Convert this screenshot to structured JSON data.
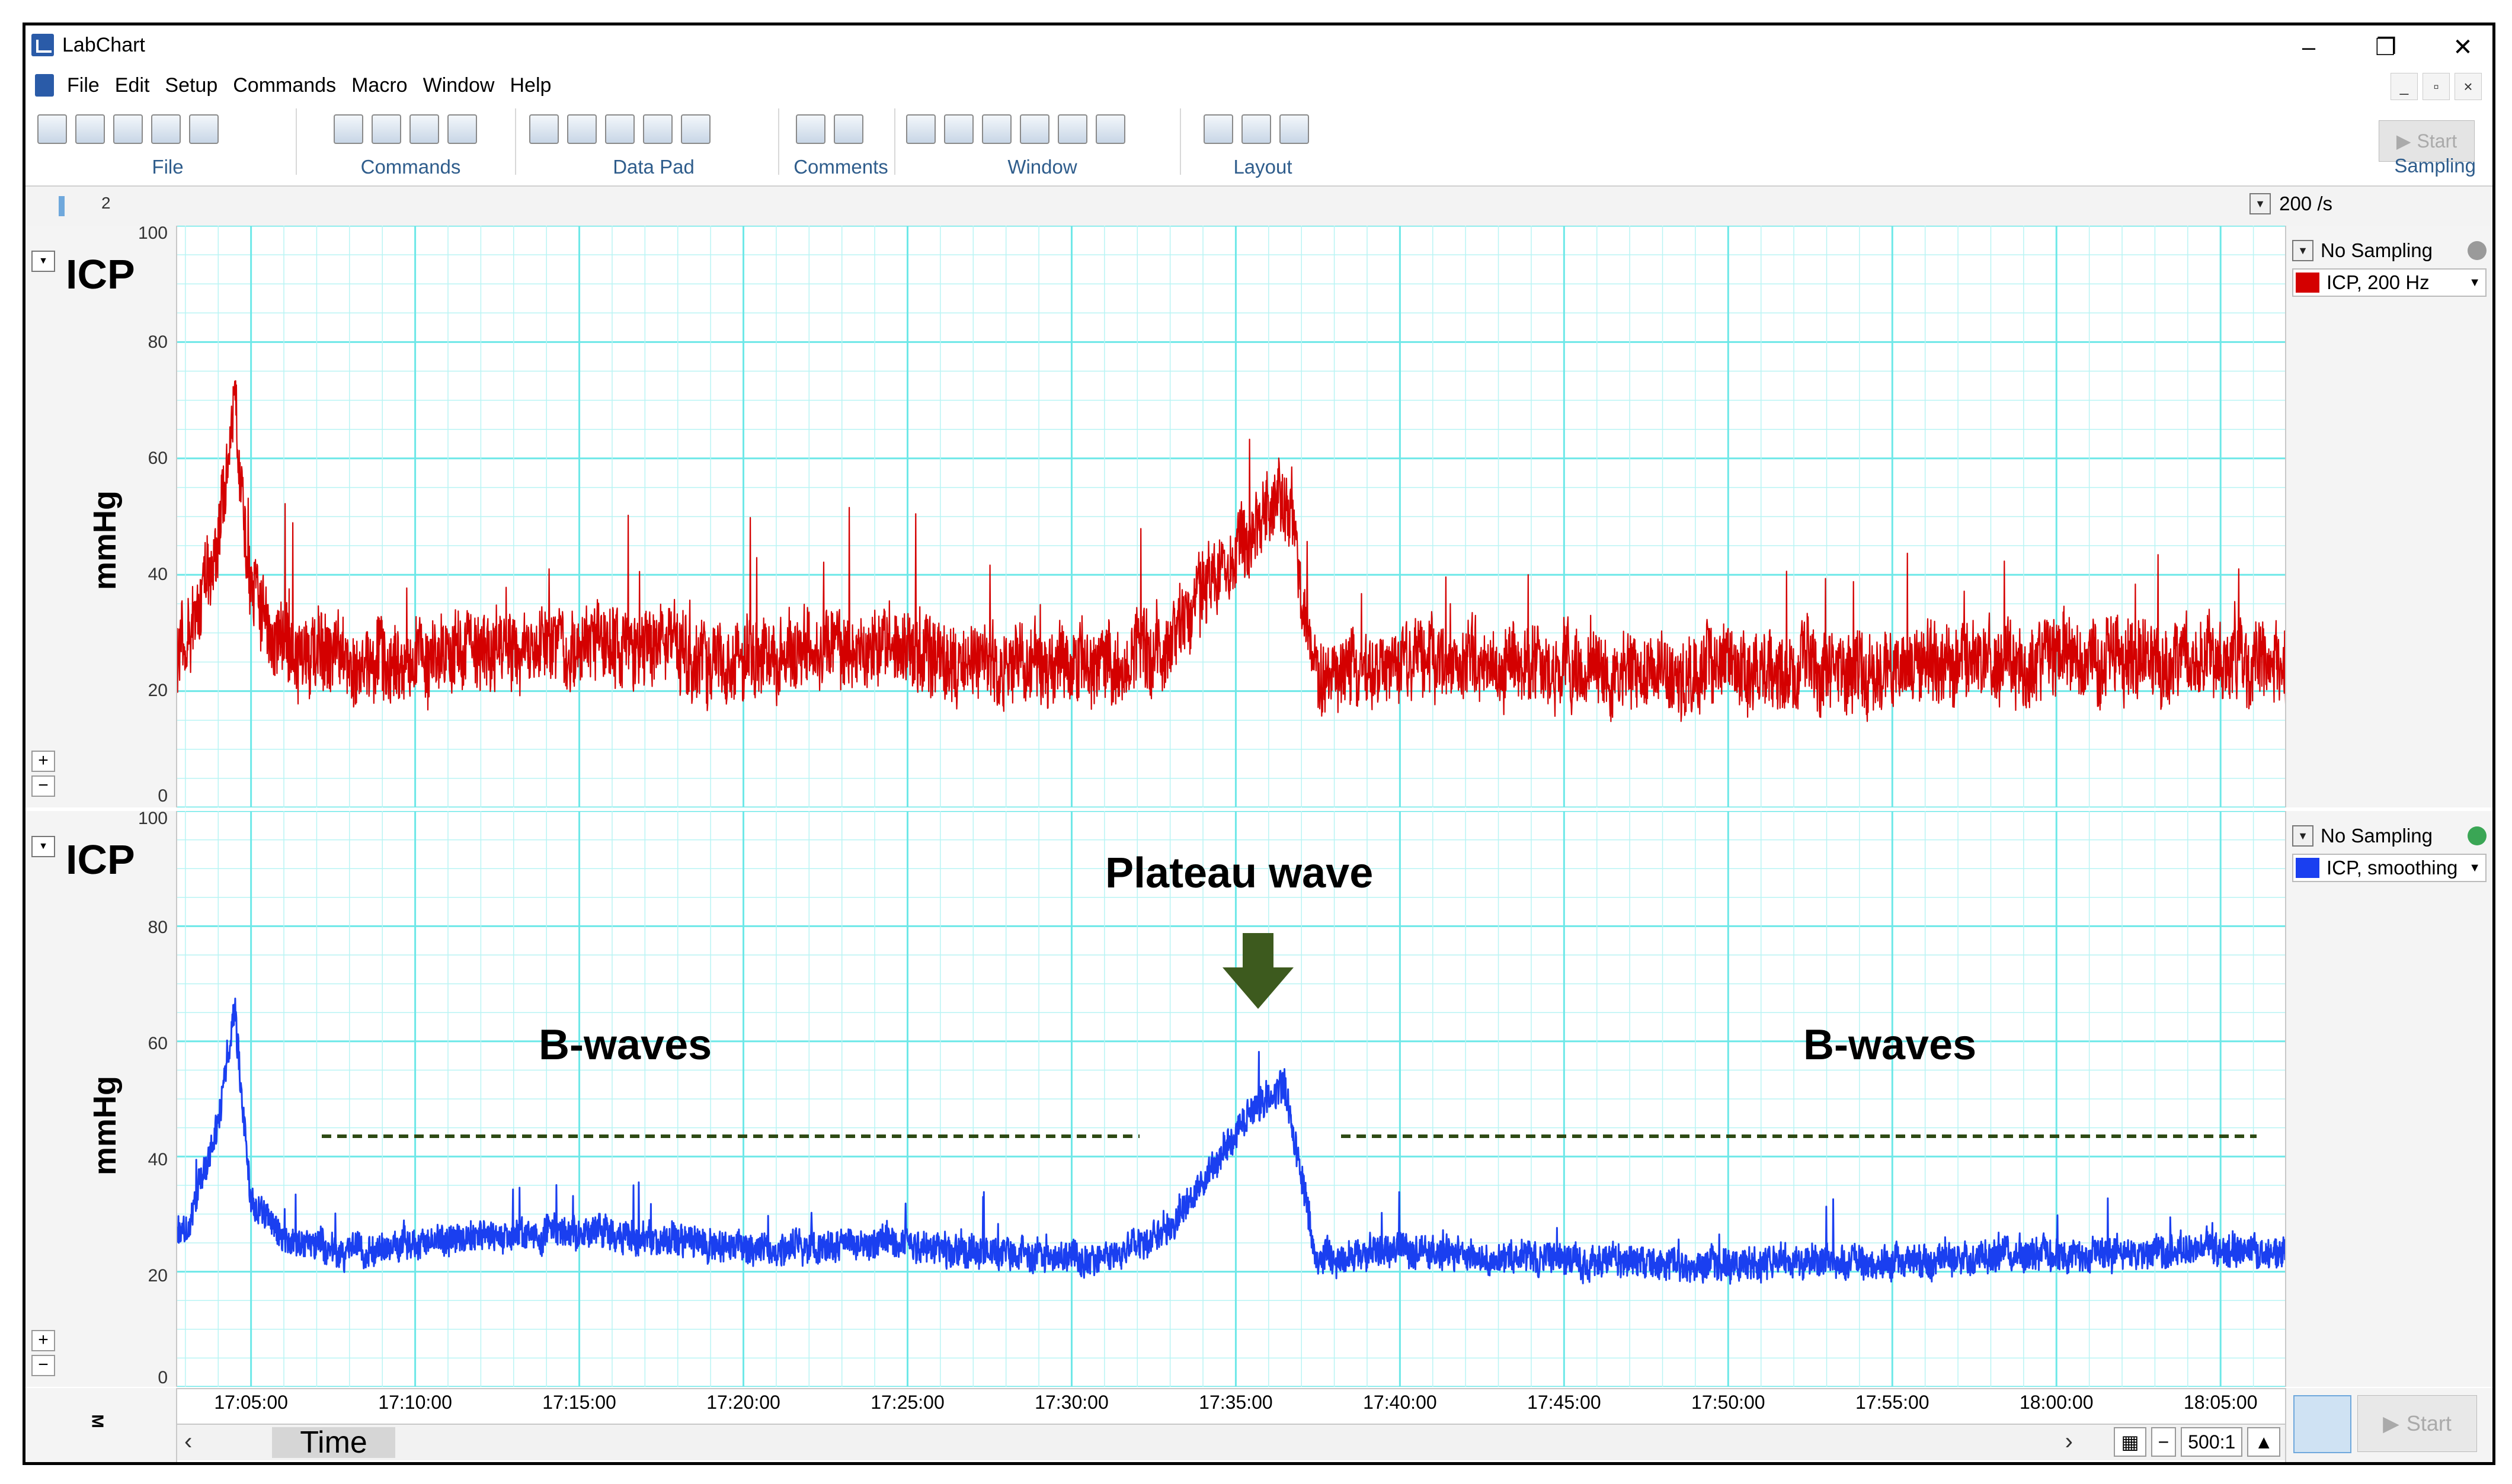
{
  "window": {
    "title": "LabChart",
    "minimize_glyph": "–",
    "maximize_glyph": "❐",
    "close_glyph": "✕"
  },
  "menu": [
    "File",
    "Edit",
    "Setup",
    "Commands",
    "Macro",
    "Window",
    "Help"
  ],
  "mdi_controls": [
    "_",
    "▫",
    "×"
  ],
  "toolbar_groups": [
    "File",
    "Commands",
    "Data Pad",
    "Comments",
    "Window",
    "Layout"
  ],
  "sampling": {
    "start_label": "Start",
    "group_label": "Sampling"
  },
  "page_strip": {
    "page_number": "2",
    "rate": "200 /s"
  },
  "channels": [
    {
      "name": "ICP",
      "unit": "mmHg",
      "y_ticks": [
        "100",
        "80",
        "60",
        "40",
        "20",
        "0"
      ],
      "status": "No Sampling",
      "config_label": "ICP, 200 Hz",
      "color": "#d40000",
      "status_dot_color": "#9a9a9a"
    },
    {
      "name": "ICP",
      "unit": "mmHg",
      "y_ticks": [
        "100",
        "80",
        "60",
        "40",
        "20",
        "0"
      ],
      "status": "No Sampling",
      "config_label": "ICP, smoothing",
      "color": "#1a3ff0",
      "status_dot_color": "#3aa655"
    }
  ],
  "time_axis": {
    "labels": [
      "17:05:00",
      "17:10:00",
      "17:15:00",
      "17:20:00",
      "17:25:00",
      "17:30:00",
      "17:35:00",
      "17:40:00",
      "17:45:00",
      "17:50:00",
      "17:55:00",
      "18:00:00",
      "18:05:00"
    ],
    "title": "Time",
    "zoom": "500:1"
  },
  "annotations": {
    "plateau_label": "Plateau wave",
    "bwaves_left": "B-waves",
    "bwaves_right": "B-waves",
    "arrow_color": "#3d5a1e",
    "dash_color": "#2e4a14"
  },
  "bottom": {
    "start_label": "Start",
    "marker_label": "M"
  },
  "chart_data": [
    {
      "type": "line",
      "title": "",
      "xlabel": "Time",
      "ylabel": "mmHg",
      "ylim": [
        0,
        100
      ],
      "x_range": [
        "17:02:45",
        "18:07:00"
      ],
      "series": [
        {
          "name": "ICP, 200 Hz",
          "x": [
            "17:03:00",
            "17:04:00",
            "17:04:30",
            "17:05:00",
            "17:06:00",
            "17:08:00",
            "17:12:00",
            "17:16:00",
            "17:20:00",
            "17:24:00",
            "17:28:00",
            "17:31:00",
            "17:33:00",
            "17:34:30",
            "17:35:30",
            "17:36:30",
            "17:37:30",
            "17:40:00",
            "17:45:00",
            "17:50:00",
            "17:55:00",
            "18:00:00",
            "18:05:00",
            "18:07:00"
          ],
          "y": [
            28,
            45,
            70,
            35,
            28,
            24,
            27,
            28,
            26,
            27,
            25,
            24,
            28,
            40,
            48,
            55,
            22,
            25,
            24,
            23,
            24,
            25,
            26,
            24
          ]
        }
      ]
    },
    {
      "type": "line",
      "title": "",
      "xlabel": "Time",
      "ylabel": "mmHg",
      "ylim": [
        0,
        100
      ],
      "x_range": [
        "17:02:45",
        "18:07:00"
      ],
      "series": [
        {
          "name": "ICP, smoothing",
          "x": [
            "17:03:00",
            "17:04:00",
            "17:04:30",
            "17:05:00",
            "17:06:00",
            "17:08:00",
            "17:12:00",
            "17:16:00",
            "17:20:00",
            "17:24:00",
            "17:28:00",
            "17:31:00",
            "17:33:00",
            "17:34:30",
            "17:35:30",
            "17:36:30",
            "17:37:30",
            "17:40:00",
            "17:45:00",
            "17:50:00",
            "17:55:00",
            "18:00:00",
            "18:05:00",
            "18:07:00"
          ],
          "y": [
            27,
            45,
            65,
            32,
            26,
            23,
            26,
            27,
            24,
            25,
            23,
            22,
            27,
            40,
            48,
            52,
            22,
            24,
            22,
            21,
            22,
            23,
            24,
            23
          ]
        }
      ]
    }
  ]
}
